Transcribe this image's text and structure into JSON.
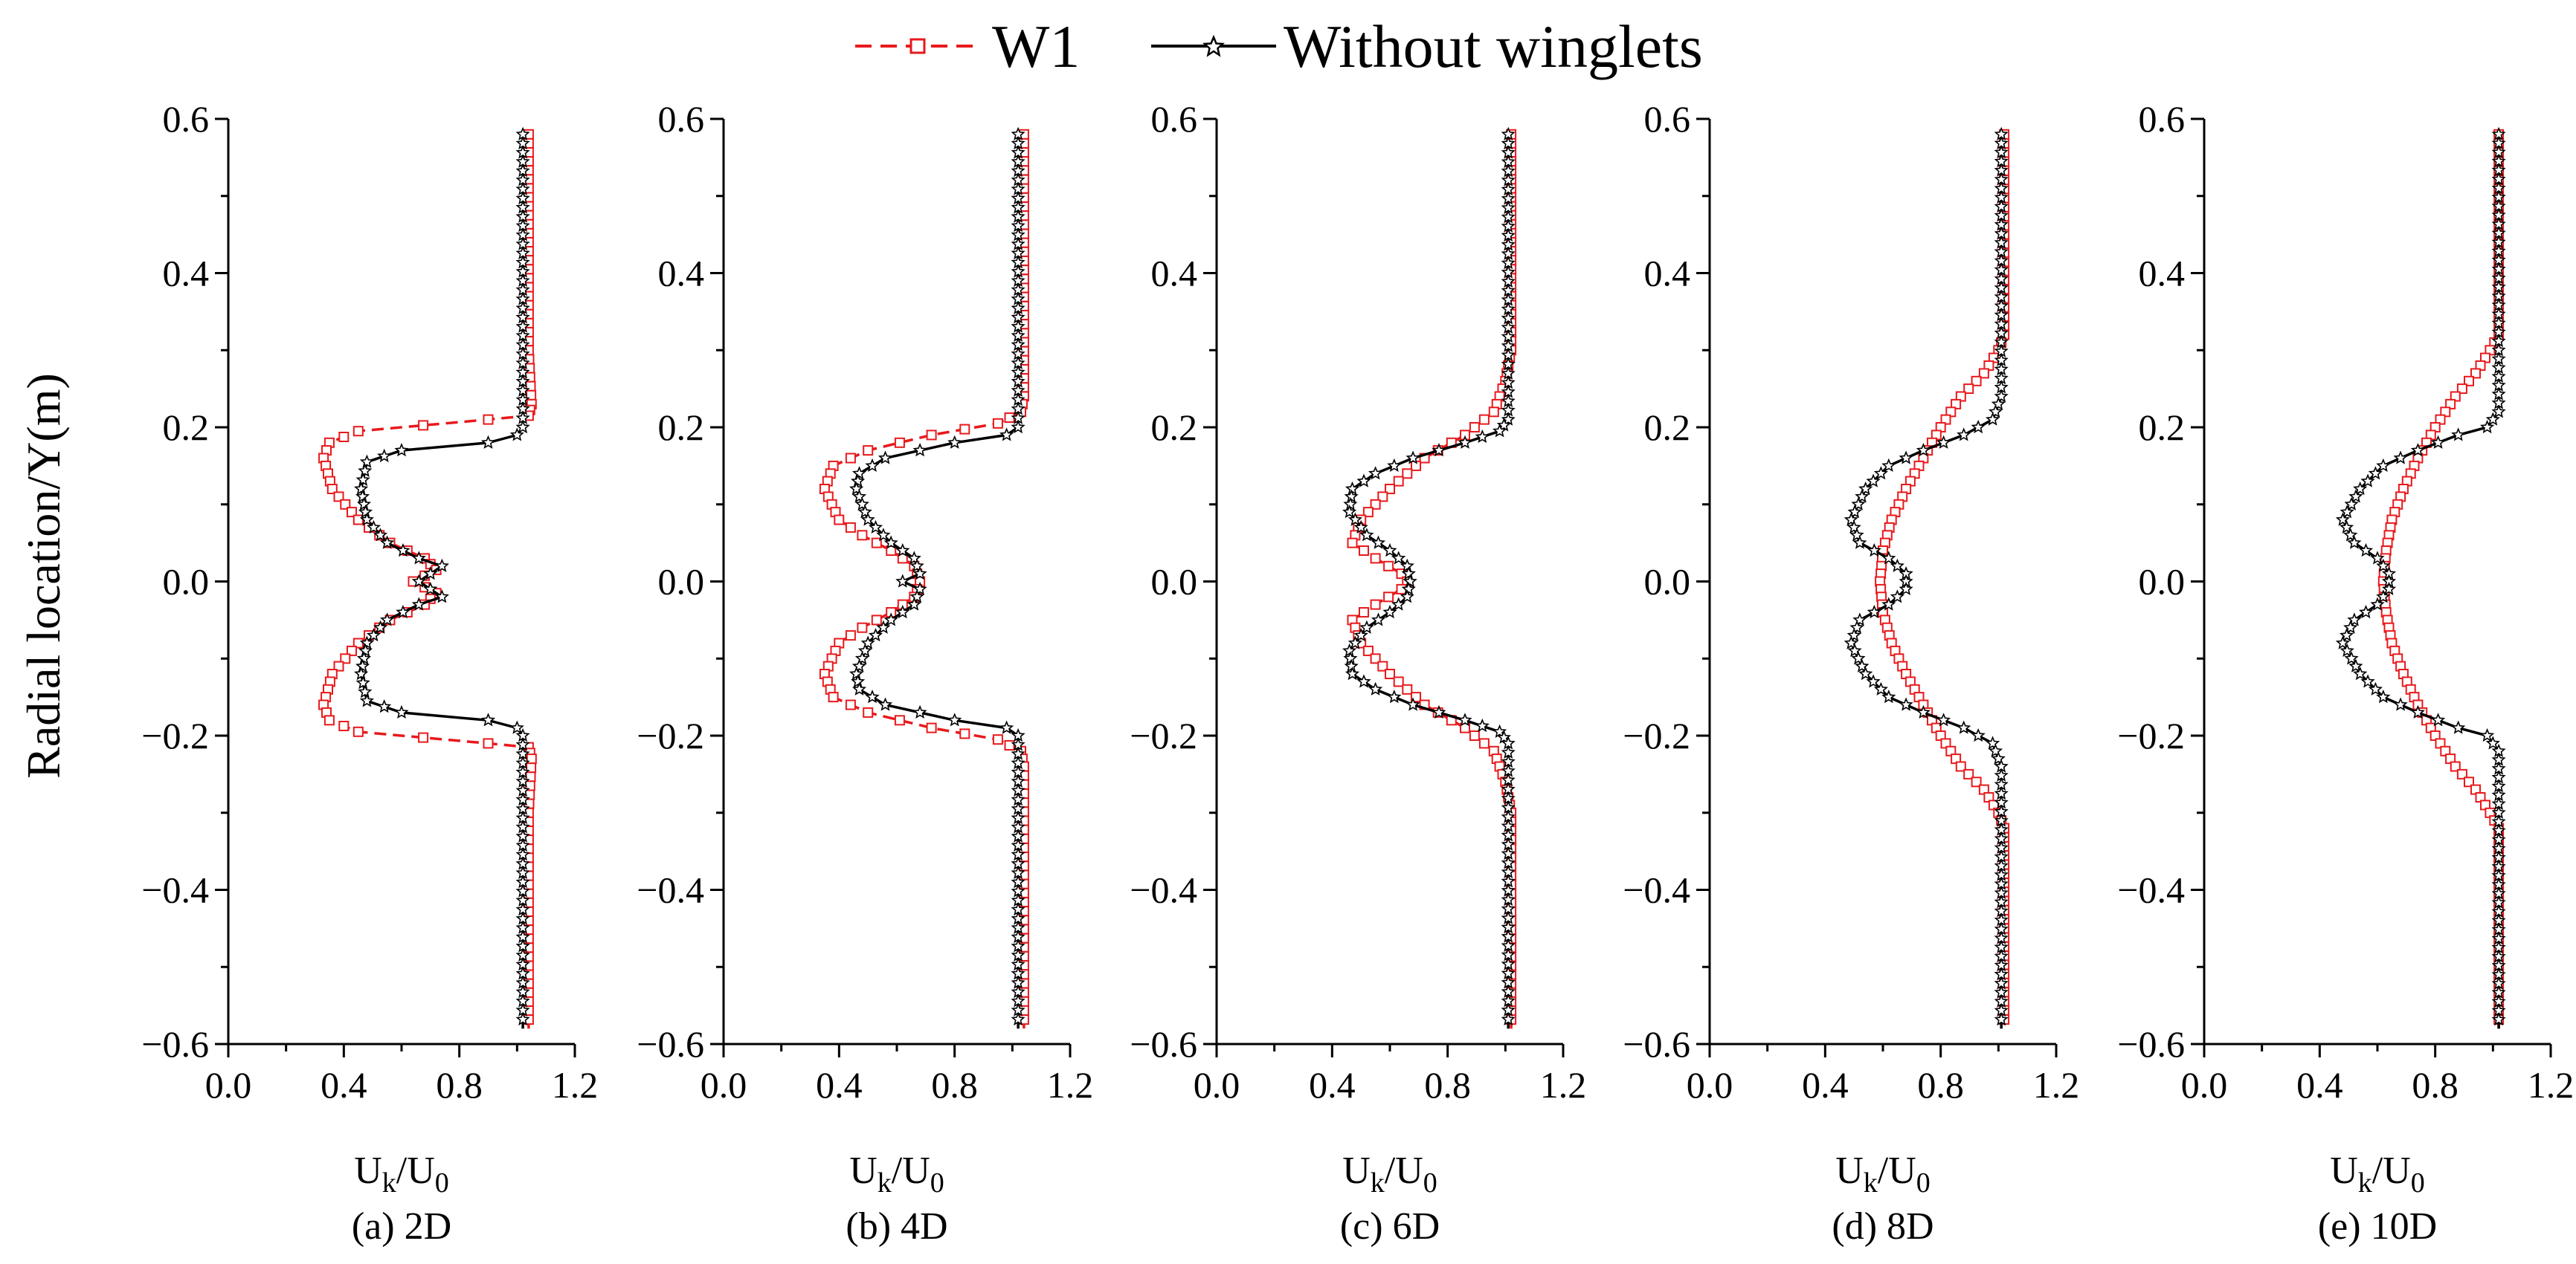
{
  "figure": {
    "legend": [
      {
        "key": "w1",
        "label": "W1",
        "color": "#e8191c",
        "style": "dashed",
        "marker": "square-open"
      },
      {
        "key": "base",
        "label": "Without winglets",
        "color": "#000000",
        "style": "solid",
        "marker": "star"
      }
    ],
    "ylabel": "Radial location/Y(m)",
    "xlabel_main": "U",
    "xlabel_sub1": "k",
    "xlabel_slash": "/U",
    "xlabel_sub2": "0"
  },
  "chart_data": [
    {
      "type": "line",
      "title": "(a) 2D",
      "xlabel": "Uk/U0",
      "ylabel": "Radial location/Y(m)",
      "xlim": [
        0.0,
        1.2
      ],
      "ylim": [
        -0.6,
        0.6
      ],
      "xticks": [
        "0.0",
        "0.4",
        "0.8",
        "1.2"
      ],
      "yticks": [
        "0.6",
        "0.4",
        "0.2",
        "0.0",
        "−0.2",
        "−0.4",
        "−0.6"
      ],
      "series": [
        {
          "name": "W1",
          "points": [
            [
              1.04,
              0.58
            ],
            [
              1.04,
              0.3
            ],
            [
              1.05,
              0.23
            ],
            [
              1.04,
              0.215
            ],
            [
              0.9,
              0.21
            ],
            [
              0.45,
              0.195
            ],
            [
              0.35,
              0.18
            ],
            [
              0.33,
              0.16
            ],
            [
              0.36,
              0.12
            ],
            [
              0.45,
              0.08
            ],
            [
              0.56,
              0.05
            ],
            [
              0.68,
              0.03
            ],
            [
              0.72,
              0.015
            ],
            [
              0.64,
              0.0
            ],
            [
              0.72,
              -0.015
            ],
            [
              0.68,
              -0.03
            ],
            [
              0.56,
              -0.05
            ],
            [
              0.45,
              -0.08
            ],
            [
              0.36,
              -0.12
            ],
            [
              0.33,
              -0.16
            ],
            [
              0.35,
              -0.18
            ],
            [
              0.45,
              -0.195
            ],
            [
              0.9,
              -0.21
            ],
            [
              1.04,
              -0.215
            ],
            [
              1.05,
              -0.23
            ],
            [
              1.04,
              -0.3
            ],
            [
              1.04,
              -0.58
            ]
          ]
        },
        {
          "name": "Without winglets",
          "points": [
            [
              1.02,
              0.58
            ],
            [
              1.02,
              0.2
            ],
            [
              1.0,
              0.19
            ],
            [
              0.9,
              0.18
            ],
            [
              0.6,
              0.17
            ],
            [
              0.48,
              0.155
            ],
            [
              0.46,
              0.12
            ],
            [
              0.48,
              0.08
            ],
            [
              0.55,
              0.05
            ],
            [
              0.66,
              0.03
            ],
            [
              0.74,
              0.02
            ],
            [
              0.66,
              0.0
            ],
            [
              0.74,
              -0.02
            ],
            [
              0.66,
              -0.03
            ],
            [
              0.55,
              -0.05
            ],
            [
              0.48,
              -0.08
            ],
            [
              0.46,
              -0.12
            ],
            [
              0.48,
              -0.155
            ],
            [
              0.6,
              -0.17
            ],
            [
              0.9,
              -0.18
            ],
            [
              1.0,
              -0.19
            ],
            [
              1.02,
              -0.2
            ],
            [
              1.02,
              -0.58
            ]
          ]
        }
      ]
    },
    {
      "type": "line",
      "title": "(b) 4D",
      "xlabel": "Uk/U0",
      "ylabel": "Radial location/Y(m)",
      "xlim": [
        0.0,
        1.2
      ],
      "ylim": [
        -0.6,
        0.6
      ],
      "xticks": [
        "0.0",
        "0.4",
        "0.8",
        "1.2"
      ],
      "yticks": [
        "0.6",
        "0.4",
        "0.2",
        "0.0",
        "−0.2",
        "−0.4",
        "−0.6"
      ],
      "series": [
        {
          "name": "W1",
          "points": [
            [
              1.04,
              0.58
            ],
            [
              1.04,
              0.24
            ],
            [
              1.03,
              0.22
            ],
            [
              0.95,
              0.205
            ],
            [
              0.72,
              0.19
            ],
            [
              0.5,
              0.17
            ],
            [
              0.38,
              0.15
            ],
            [
              0.35,
              0.12
            ],
            [
              0.4,
              0.08
            ],
            [
              0.48,
              0.06
            ],
            [
              0.58,
              0.04
            ],
            [
              0.66,
              0.02
            ],
            [
              0.68,
              0.0
            ],
            [
              0.66,
              -0.02
            ],
            [
              0.58,
              -0.04
            ],
            [
              0.48,
              -0.06
            ],
            [
              0.4,
              -0.08
            ],
            [
              0.35,
              -0.12
            ],
            [
              0.38,
              -0.15
            ],
            [
              0.5,
              -0.17
            ],
            [
              0.72,
              -0.19
            ],
            [
              0.95,
              -0.205
            ],
            [
              1.03,
              -0.22
            ],
            [
              1.04,
              -0.24
            ],
            [
              1.04,
              -0.58
            ]
          ]
        },
        {
          "name": "Without winglets",
          "points": [
            [
              1.02,
              0.58
            ],
            [
              1.02,
              0.2
            ],
            [
              0.98,
              0.19
            ],
            [
              0.8,
              0.18
            ],
            [
              0.56,
              0.16
            ],
            [
              0.47,
              0.14
            ],
            [
              0.46,
              0.12
            ],
            [
              0.5,
              0.08
            ],
            [
              0.58,
              0.05
            ],
            [
              0.66,
              0.03
            ],
            [
              0.68,
              0.01
            ],
            [
              0.62,
              0.0
            ],
            [
              0.68,
              -0.01
            ],
            [
              0.66,
              -0.03
            ],
            [
              0.58,
              -0.05
            ],
            [
              0.5,
              -0.08
            ],
            [
              0.46,
              -0.12
            ],
            [
              0.47,
              -0.14
            ],
            [
              0.56,
              -0.16
            ],
            [
              0.8,
              -0.18
            ],
            [
              0.98,
              -0.19
            ],
            [
              1.02,
              -0.2
            ],
            [
              1.02,
              -0.58
            ]
          ]
        }
      ]
    },
    {
      "type": "line",
      "title": "(c) 6D",
      "xlabel": "Uk/U0",
      "ylabel": "Radial location/Y(m)",
      "xlim": [
        0.0,
        1.2
      ],
      "ylim": [
        -0.6,
        0.6
      ],
      "xticks": [
        "0.0",
        "0.4",
        "0.8",
        "1.2"
      ],
      "yticks": [
        "0.6",
        "0.4",
        "0.2",
        "0.0",
        "−0.2",
        "−0.4",
        "−0.6"
      ],
      "series": [
        {
          "name": "W1",
          "points": [
            [
              1.02,
              0.58
            ],
            [
              1.02,
              0.3
            ],
            [
              1.0,
              0.26
            ],
            [
              0.96,
              0.22
            ],
            [
              0.86,
              0.19
            ],
            [
              0.72,
              0.16
            ],
            [
              0.6,
              0.12
            ],
            [
              0.5,
              0.08
            ],
            [
              0.47,
              0.05
            ],
            [
              0.55,
              0.03
            ],
            [
              0.64,
              0.01
            ],
            [
              0.66,
              0.0
            ],
            [
              0.64,
              -0.01
            ],
            [
              0.55,
              -0.03
            ],
            [
              0.47,
              -0.05
            ],
            [
              0.5,
              -0.08
            ],
            [
              0.6,
              -0.12
            ],
            [
              0.72,
              -0.16
            ],
            [
              0.86,
              -0.19
            ],
            [
              0.96,
              -0.22
            ],
            [
              1.0,
              -0.26
            ],
            [
              1.02,
              -0.3
            ],
            [
              1.02,
              -0.58
            ]
          ]
        },
        {
          "name": "Without winglets",
          "points": [
            [
              1.01,
              0.58
            ],
            [
              1.01,
              0.21
            ],
            [
              0.98,
              0.195
            ],
            [
              0.86,
              0.18
            ],
            [
              0.68,
              0.16
            ],
            [
              0.55,
              0.14
            ],
            [
              0.47,
              0.12
            ],
            [
              0.46,
              0.09
            ],
            [
              0.52,
              0.06
            ],
            [
              0.6,
              0.04
            ],
            [
              0.66,
              0.02
            ],
            [
              0.67,
              0.0
            ],
            [
              0.66,
              -0.02
            ],
            [
              0.6,
              -0.04
            ],
            [
              0.52,
              -0.06
            ],
            [
              0.46,
              -0.09
            ],
            [
              0.47,
              -0.12
            ],
            [
              0.55,
              -0.14
            ],
            [
              0.68,
              -0.16
            ],
            [
              0.86,
              -0.18
            ],
            [
              0.98,
              -0.195
            ],
            [
              1.01,
              -0.21
            ],
            [
              1.01,
              -0.58
            ]
          ]
        }
      ]
    },
    {
      "type": "line",
      "title": "(d) 8D",
      "xlabel": "Uk/U0",
      "ylabel": "Radial location/Y(m)",
      "xlim": [
        0.0,
        1.2
      ],
      "ylim": [
        -0.6,
        0.6
      ],
      "xticks": [
        "0.0",
        "0.4",
        "0.8",
        "1.2"
      ],
      "yticks": [
        "0.6",
        "0.4",
        "0.2",
        "0.0",
        "−0.2",
        "−0.4",
        "−0.6"
      ],
      "series": [
        {
          "name": "W1",
          "points": [
            [
              1.02,
              0.58
            ],
            [
              1.02,
              0.32
            ],
            [
              1.0,
              0.3
            ],
            [
              0.95,
              0.27
            ],
            [
              0.87,
              0.24
            ],
            [
              0.8,
              0.2
            ],
            [
              0.74,
              0.16
            ],
            [
              0.68,
              0.12
            ],
            [
              0.63,
              0.08
            ],
            [
              0.6,
              0.04
            ],
            [
              0.59,
              0.0
            ],
            [
              0.6,
              -0.04
            ],
            [
              0.63,
              -0.08
            ],
            [
              0.68,
              -0.12
            ],
            [
              0.74,
              -0.16
            ],
            [
              0.8,
              -0.2
            ],
            [
              0.87,
              -0.24
            ],
            [
              0.95,
              -0.27
            ],
            [
              1.0,
              -0.3
            ],
            [
              1.02,
              -0.32
            ],
            [
              1.02,
              -0.58
            ]
          ]
        },
        {
          "name": "Without winglets",
          "points": [
            [
              1.01,
              0.58
            ],
            [
              1.01,
              0.24
            ],
            [
              0.98,
              0.21
            ],
            [
              0.88,
              0.19
            ],
            [
              0.74,
              0.17
            ],
            [
              0.62,
              0.15
            ],
            [
              0.54,
              0.12
            ],
            [
              0.49,
              0.08
            ],
            [
              0.52,
              0.05
            ],
            [
              0.62,
              0.03
            ],
            [
              0.68,
              0.01
            ],
            [
              0.68,
              0.0
            ],
            [
              0.68,
              -0.01
            ],
            [
              0.62,
              -0.03
            ],
            [
              0.52,
              -0.05
            ],
            [
              0.49,
              -0.08
            ],
            [
              0.54,
              -0.12
            ],
            [
              0.62,
              -0.15
            ],
            [
              0.74,
              -0.17
            ],
            [
              0.88,
              -0.19
            ],
            [
              0.98,
              -0.21
            ],
            [
              1.01,
              -0.24
            ],
            [
              1.01,
              -0.58
            ]
          ]
        }
      ]
    },
    {
      "type": "line",
      "title": "(e) 10D",
      "xlabel": "Uk/U0",
      "ylabel": "Radial location/Y(m)",
      "xlim": [
        0.0,
        1.2
      ],
      "ylim": [
        -0.6,
        0.6
      ],
      "xticks": [
        "0.0",
        "0.4",
        "0.8",
        "1.2"
      ],
      "yticks": [
        "0.6",
        "0.4",
        "0.2",
        "0.0",
        "−0.2",
        "−0.4",
        "−0.6"
      ],
      "series": [
        {
          "name": "W1",
          "points": [
            [
              1.02,
              0.58
            ],
            [
              1.02,
              0.32
            ],
            [
              0.99,
              0.3
            ],
            [
              0.94,
              0.27
            ],
            [
              0.87,
              0.24
            ],
            [
              0.8,
              0.2
            ],
            [
              0.74,
              0.16
            ],
            [
              0.69,
              0.12
            ],
            [
              0.65,
              0.08
            ],
            [
              0.63,
              0.04
            ],
            [
              0.62,
              0.0
            ],
            [
              0.63,
              -0.04
            ],
            [
              0.65,
              -0.08
            ],
            [
              0.69,
              -0.12
            ],
            [
              0.74,
              -0.16
            ],
            [
              0.8,
              -0.2
            ],
            [
              0.87,
              -0.24
            ],
            [
              0.94,
              -0.27
            ],
            [
              0.99,
              -0.3
            ],
            [
              1.02,
              -0.32
            ],
            [
              1.02,
              -0.58
            ]
          ]
        },
        {
          "name": "Without winglets",
          "points": [
            [
              1.02,
              0.58
            ],
            [
              1.02,
              0.3
            ],
            [
              1.02,
              0.22
            ],
            [
              0.98,
              0.2
            ],
            [
              0.88,
              0.19
            ],
            [
              0.74,
              0.17
            ],
            [
              0.62,
              0.15
            ],
            [
              0.54,
              0.12
            ],
            [
              0.48,
              0.08
            ],
            [
              0.52,
              0.05
            ],
            [
              0.6,
              0.03
            ],
            [
              0.64,
              0.01
            ],
            [
              0.64,
              0.0
            ],
            [
              0.64,
              -0.01
            ],
            [
              0.6,
              -0.03
            ],
            [
              0.52,
              -0.05
            ],
            [
              0.48,
              -0.08
            ],
            [
              0.54,
              -0.12
            ],
            [
              0.62,
              -0.15
            ],
            [
              0.74,
              -0.17
            ],
            [
              0.88,
              -0.19
            ],
            [
              0.98,
              -0.2
            ],
            [
              1.02,
              -0.22
            ],
            [
              1.02,
              -0.3
            ],
            [
              1.02,
              -0.58
            ]
          ]
        }
      ]
    }
  ]
}
